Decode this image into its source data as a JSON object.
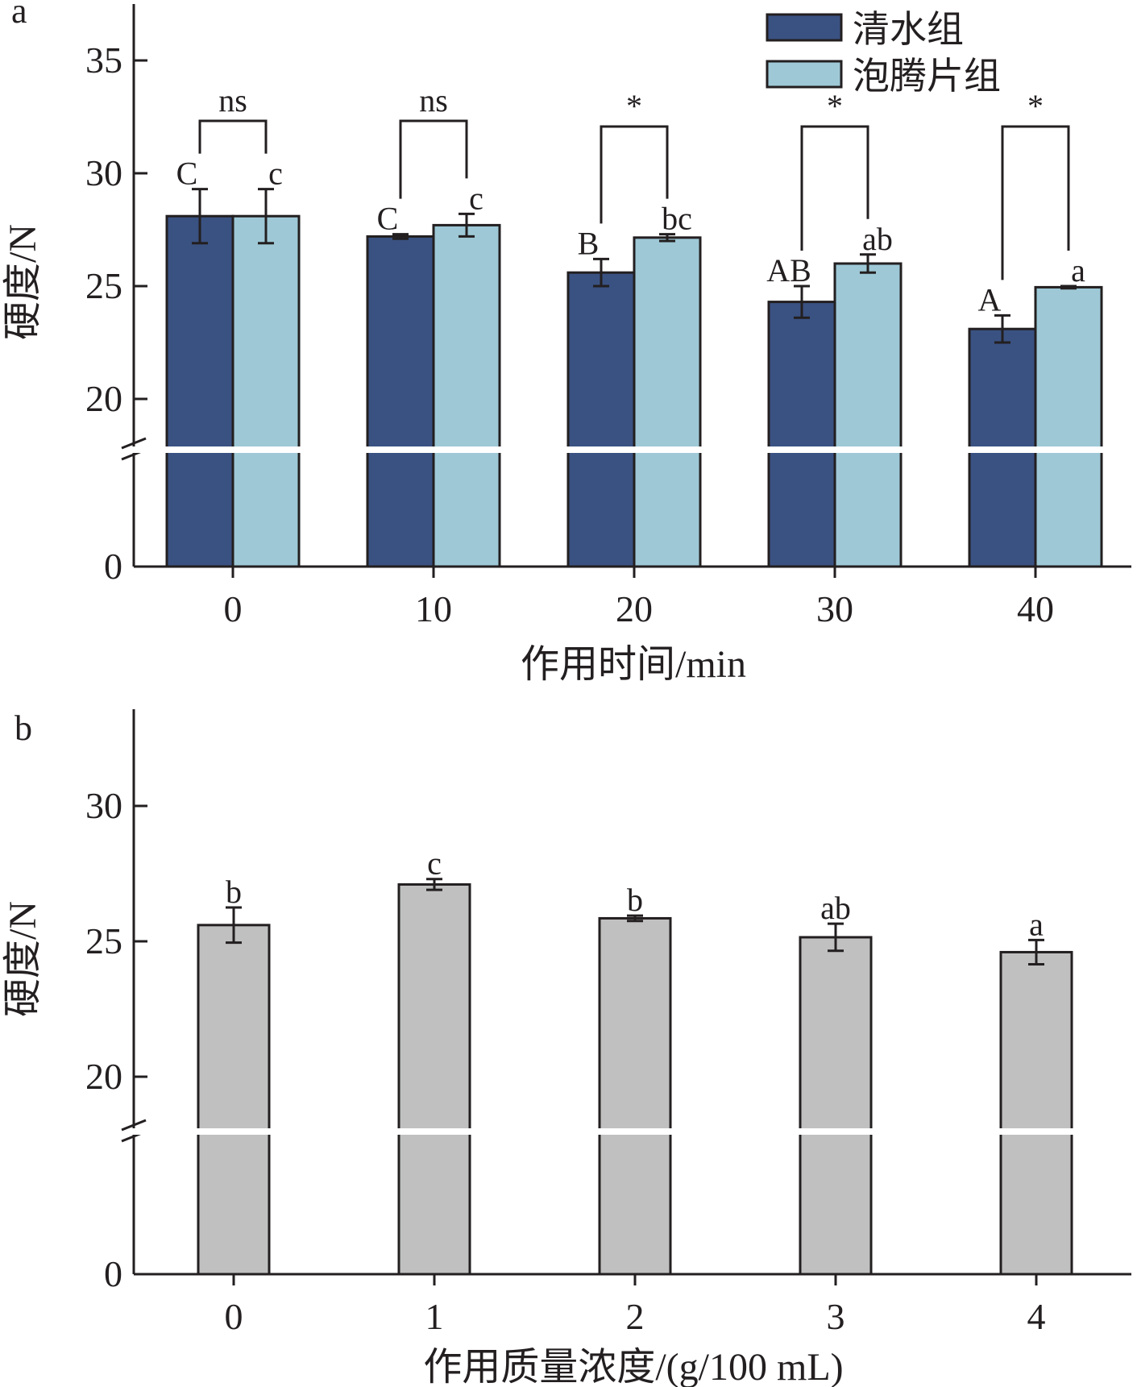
{
  "chart_data": [
    {
      "panel_label": "a",
      "type": "bar",
      "ylabel": "硬度/N",
      "xlabel": "作用时间/min",
      "categories": [
        "0",
        "10",
        "20",
        "30",
        "40"
      ],
      "y_axis_break": [
        0,
        17.8
      ],
      "ylim": [
        0,
        37
      ],
      "yticks": [
        "0",
        "20",
        "25",
        "30",
        "35"
      ],
      "legend_position": "top-right",
      "series": [
        {
          "name": "清水组",
          "color": "#3a5282",
          "values": [
            28.1,
            27.2,
            25.6,
            24.3,
            23.1
          ],
          "errors": [
            1.2,
            0.1,
            0.6,
            0.7,
            0.6
          ],
          "group_labels": [
            "C",
            "C",
            "B",
            "AB",
            "A"
          ]
        },
        {
          "name": "泡腾片组",
          "color": "#9ec8d6",
          "values": [
            28.1,
            27.7,
            27.15,
            26.0,
            24.95
          ],
          "errors": [
            1.2,
            0.5,
            0.15,
            0.4,
            0.05
          ],
          "group_labels": [
            "c",
            "c",
            "bc",
            "ab",
            "a"
          ]
        }
      ],
      "significance": [
        "ns",
        "ns",
        "*",
        "*",
        "*"
      ]
    },
    {
      "panel_label": "b",
      "type": "bar",
      "ylabel": "硬度/N",
      "xlabel": "作用质量浓度/(g/100 mL)",
      "categories": [
        "0",
        "1",
        "2",
        "3",
        "4"
      ],
      "y_axis_break": [
        0,
        17.8
      ],
      "ylim": [
        0,
        34
      ],
      "yticks": [
        "0",
        "20",
        "25",
        "30"
      ],
      "series": [
        {
          "name": "",
          "color": "#c0c0c0",
          "values": [
            25.6,
            27.1,
            25.85,
            25.15,
            24.6
          ],
          "errors": [
            0.65,
            0.2,
            0.1,
            0.5,
            0.45
          ],
          "group_labels": [
            "b",
            "c",
            "b",
            "ab",
            "a"
          ]
        }
      ]
    }
  ]
}
